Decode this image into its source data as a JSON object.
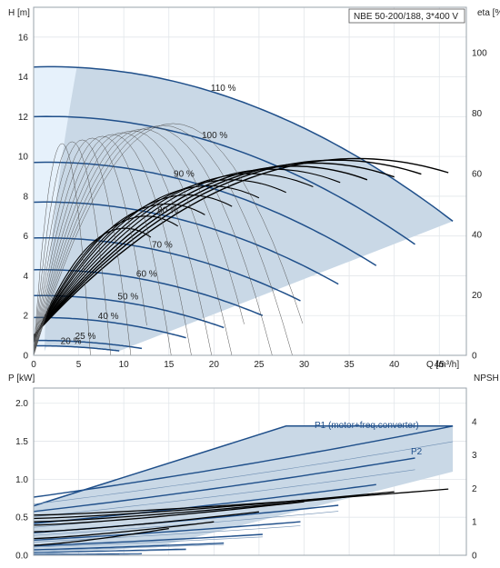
{
  "chart_data": [
    {
      "type": "line",
      "title": "NBE 50-200/188, 3*400 V",
      "xlabel": "Q [m³/h]",
      "ylabel": "H [m]",
      "y2label": "eta [%]",
      "xlim": [
        0,
        48
      ],
      "ylim": [
        0,
        17.5
      ],
      "y2lim": [
        0,
        115
      ],
      "xticks": [
        0,
        5,
        10,
        15,
        20,
        25,
        30,
        35,
        40,
        45
      ],
      "yticks": [
        0,
        2,
        4,
        6,
        8,
        10,
        12,
        14,
        16
      ],
      "y2ticks": [
        0,
        20,
        40,
        60,
        80,
        100
      ],
      "grid": true,
      "curve_shape": {
        "h_rise": 0.045,
        "h_drop": 0.58,
        "p_start": 0.45,
        "p_slope": 0.45
      },
      "speed_curves": [
        {
          "speed": 110,
          "label": "110 %",
          "h0": 14.5,
          "qmax": 46.5
        },
        {
          "speed": 100,
          "label": "100 %",
          "h0": 12.0,
          "qmax": 42.3
        },
        {
          "speed": 90,
          "label": "90 %",
          "h0": 9.7,
          "qmax": 38.0
        },
        {
          "speed": 80,
          "label": "80 %",
          "h0": 7.7,
          "qmax": 33.8
        },
        {
          "speed": 70,
          "label": "70 %",
          "h0": 5.9,
          "qmax": 29.6
        },
        {
          "speed": 60,
          "label": "60 %",
          "h0": 4.3,
          "qmax": 25.4
        },
        {
          "speed": 50,
          "label": "50 %",
          "h0": 3.0,
          "qmax": 21.1
        },
        {
          "speed": 40,
          "label": "40 %",
          "h0": 1.9,
          "qmax": 16.9
        },
        {
          "speed": 25,
          "label": "25 %",
          "h0": 0.75,
          "qmax": 12.0
        },
        {
          "speed": 20,
          "label": "20 %",
          "h0": 0.48,
          "qmax": 9.5
        }
      ],
      "eta_curves": [
        {
          "qmax": 13,
          "peak": 42
        },
        {
          "qmax": 16,
          "peak": 46
        },
        {
          "qmax": 19,
          "peak": 50
        },
        {
          "qmax": 22,
          "peak": 53
        },
        {
          "qmax": 25,
          "peak": 56
        },
        {
          "qmax": 28,
          "peak": 58
        },
        {
          "qmax": 31,
          "peak": 60
        },
        {
          "qmax": 34,
          "peak": 61.5
        },
        {
          "qmax": 37,
          "peak": 62.5
        },
        {
          "qmax": 40,
          "peak": 63.5
        },
        {
          "qmax": 43,
          "peak": 64.5
        },
        {
          "qmax": 46,
          "peak": 65
        }
      ]
    },
    {
      "type": "line",
      "xlabel": "Q [m³/h]",
      "ylabel": "P [kW]",
      "y2label": "NPSH [m]",
      "xlim": [
        0,
        48
      ],
      "ylim": [
        0,
        2.2
      ],
      "y2lim": [
        0,
        5
      ],
      "yticks": [
        0.0,
        0.5,
        1.0,
        1.5,
        2.0
      ],
      "y2ticks": [
        0,
        1,
        2,
        3,
        4
      ],
      "grid": true,
      "series_labels": {
        "p1": "P1 (motor+freq.converter)",
        "p2": "P2"
      },
      "p1_max": 1.7,
      "p2_max": 1.5,
      "npsh": [
        {
          "qmax": 15,
          "start": 0.3,
          "end": 0.8
        },
        {
          "qmax": 20,
          "start": 0.5,
          "end": 1.0
        },
        {
          "qmax": 25,
          "start": 0.7,
          "end": 1.3
        },
        {
          "qmax": 30,
          "start": 0.9,
          "end": 1.6
        },
        {
          "qmax": 35,
          "start": 1.0,
          "end": 1.75
        },
        {
          "qmax": 40,
          "start": 1.1,
          "end": 1.9
        },
        {
          "qmax": 46,
          "start": 1.2,
          "end": 1.98
        }
      ]
    }
  ]
}
